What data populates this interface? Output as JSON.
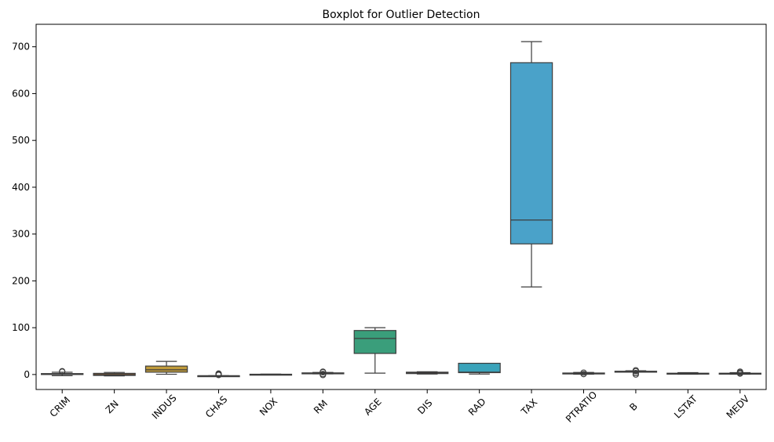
{
  "chart_data": {
    "type": "boxplot",
    "title": "Boxplot for Outlier Detection",
    "xlabel": "",
    "ylabel": "",
    "ylim": [
      -32,
      748
    ],
    "yticks": [
      0,
      100,
      200,
      300,
      400,
      500,
      600,
      700
    ],
    "grid": false,
    "categories": [
      "CRIM",
      "ZN",
      "INDUS",
      "CHAS",
      "NOX",
      "RM",
      "AGE",
      "DIS",
      "RAD",
      "TAX",
      "PTRATIO",
      "B",
      "LSTAT",
      "MEDV"
    ],
    "boxes": [
      {
        "name": "CRIM",
        "whislo": -2.6,
        "q1": 0.1,
        "med": 0.3,
        "q3": 2.0,
        "whishi": 4.8,
        "fliers": [
          6,
          7
        ],
        "color": "#3274a1"
      },
      {
        "name": "ZN",
        "whislo": -3,
        "q1": -2,
        "med": 0,
        "q3": 2.5,
        "whishi": 4.5,
        "fliers": [],
        "color": "#e1812c"
      },
      {
        "name": "INDUS",
        "whislo": 0.5,
        "q1": 5,
        "med": 10,
        "q3": 18,
        "whishi": 28,
        "fliers": [],
        "color": "#bf9a3a"
      },
      {
        "name": "CHAS",
        "whislo": -2.6,
        "q1": -2.6,
        "med": -2.6,
        "q3": -2.6,
        "whishi": -2.6,
        "fliers": [
          -1,
          0,
          1,
          2
        ],
        "color": "#3a923a"
      },
      {
        "name": "NOX",
        "whislo": 0.4,
        "q1": 0.45,
        "med": 0.55,
        "q3": 0.62,
        "whishi": 0.87,
        "fliers": [],
        "color": "#c03d3e"
      },
      {
        "name": "RM",
        "whislo": 1.5,
        "q1": 2.6,
        "med": 3,
        "q3": 3.5,
        "whishi": 4.5,
        "fliers": [
          -1,
          1,
          5,
          6
        ],
        "color": "#9372b2"
      },
      {
        "name": "AGE",
        "whislo": 3,
        "q1": 45,
        "med": 77,
        "q3": 94,
        "whishi": 100,
        "fliers": [],
        "color": "#3a9e7b"
      },
      {
        "name": "DIS",
        "whislo": 1.1,
        "q1": 2,
        "med": 3,
        "q3": 5,
        "whishi": 6,
        "fliers": [],
        "color": "#ca3a3a"
      },
      {
        "name": "RAD",
        "whislo": 1,
        "q1": 4,
        "med": 5,
        "q3": 24,
        "whishi": 24,
        "fliers": [],
        "color": "#3aa3ba"
      },
      {
        "name": "TAX",
        "whislo": 187,
        "q1": 279,
        "med": 330,
        "q3": 666,
        "whishi": 711,
        "fliers": [],
        "color": "#4aa2c9"
      },
      {
        "name": "PTRATIO",
        "whislo": 0.5,
        "q1": 1.8,
        "med": 2.5,
        "q3": 3.2,
        "whishi": 4.5,
        "fliers": [
          1,
          4
        ],
        "color": "#3aa3ba"
      },
      {
        "name": "B",
        "whislo": 5,
        "q1": 6,
        "med": 6.5,
        "q3": 7,
        "whishi": 8,
        "fliers": [
          0,
          3,
          7,
          9
        ],
        "color": "#3aa3ba"
      },
      {
        "name": "LSTAT",
        "whislo": 0.5,
        "q1": 1.5,
        "med": 2,
        "q3": 2.8,
        "whishi": 4,
        "fliers": [],
        "color": "#3aa3ba"
      },
      {
        "name": "MEDV",
        "whislo": 0.5,
        "q1": 1.5,
        "med": 2,
        "q3": 2.8,
        "whishi": 4,
        "fliers": [
          2,
          4,
          6
        ],
        "color": "#3aa3ba"
      }
    ]
  }
}
